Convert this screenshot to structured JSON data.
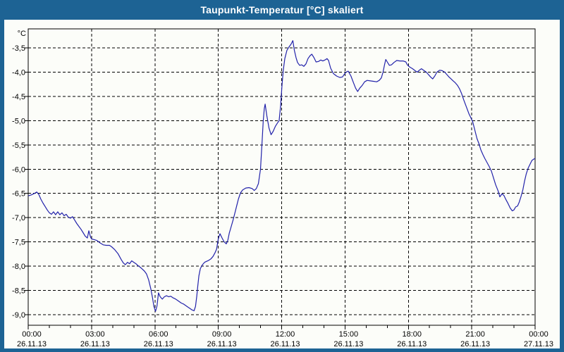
{
  "window": {
    "title": "Taupunkt-Temperatur [°C] skaliert"
  },
  "colors": {
    "frame_blue": "#1d6394",
    "title_text": "#ffffff",
    "plot_background": "#fcfdf9",
    "grid_black": "#000000",
    "line_blue": "#2222aa"
  },
  "chart_data": {
    "type": "line",
    "title": "Taupunkt-Temperatur [°C] skaliert",
    "y_unit": "°C",
    "grid": "dashed",
    "legend": "none",
    "xlim_hours": [
      0,
      24
    ],
    "ylim": [
      -9.2,
      -3.1
    ],
    "y_axis": {
      "unit_label": "°C",
      "tick_step": 0.5,
      "ticks": [
        "-3,5",
        "-4,0",
        "-4,5",
        "-5,0",
        "-5,5",
        "-6,0",
        "-6,5",
        "-7,0",
        "-7,5",
        "-8,0",
        "-8,5",
        "-9,0"
      ]
    },
    "x_axis": {
      "major_step_hours": 3,
      "minor_step_hours": 1,
      "ticks": [
        {
          "time": "00:00",
          "date": "26.11.13"
        },
        {
          "time": "03:00",
          "date": "26.11.13"
        },
        {
          "time": "06:00",
          "date": "26.11.13"
        },
        {
          "time": "09:00",
          "date": "26.11.13"
        },
        {
          "time": "12:00",
          "date": "26.11.13"
        },
        {
          "time": "15:00",
          "date": "26.11.13"
        },
        {
          "time": "18:00",
          "date": "26.11.13"
        },
        {
          "time": "21:00",
          "date": "26.11.13"
        },
        {
          "time": "00:00",
          "date": "27.11.13"
        }
      ]
    },
    "series": [
      {
        "name": "Taupunkt-Temperatur",
        "color": "#2222aa",
        "points": [
          [
            0,
            -6.55
          ],
          [
            0.15,
            -6.53
          ],
          [
            0.3,
            -6.5
          ],
          [
            0.4,
            -6.47
          ],
          [
            0.5,
            -6.52
          ],
          [
            0.6,
            -6.62
          ],
          [
            0.7,
            -6.7
          ],
          [
            0.8,
            -6.77
          ],
          [
            0.9,
            -6.84
          ],
          [
            1,
            -6.9
          ],
          [
            1.1,
            -6.93
          ],
          [
            1.2,
            -6.88
          ],
          [
            1.3,
            -6.94
          ],
          [
            1.4,
            -6.88
          ],
          [
            1.5,
            -6.94
          ],
          [
            1.6,
            -6.9
          ],
          [
            1.7,
            -6.96
          ],
          [
            1.8,
            -6.93
          ],
          [
            1.9,
            -6.99
          ],
          [
            2,
            -7.01
          ],
          [
            2.1,
            -6.98
          ],
          [
            2.2,
            -7.05
          ],
          [
            2.3,
            -7.12
          ],
          [
            2.4,
            -7.18
          ],
          [
            2.5,
            -7.24
          ],
          [
            2.6,
            -7.31
          ],
          [
            2.7,
            -7.38
          ],
          [
            2.8,
            -7.42
          ],
          [
            2.87,
            -7.27
          ],
          [
            2.95,
            -7.4
          ],
          [
            3,
            -7.44
          ],
          [
            3.1,
            -7.45
          ],
          [
            3.25,
            -7.47
          ],
          [
            3.4,
            -7.52
          ],
          [
            3.55,
            -7.56
          ],
          [
            3.7,
            -7.57
          ],
          [
            3.85,
            -7.57
          ],
          [
            3.95,
            -7.6
          ],
          [
            4.1,
            -7.66
          ],
          [
            4.25,
            -7.74
          ],
          [
            4.4,
            -7.86
          ],
          [
            4.5,
            -7.93
          ],
          [
            4.6,
            -7.97
          ],
          [
            4.7,
            -7.92
          ],
          [
            4.8,
            -7.95
          ],
          [
            4.9,
            -7.89
          ],
          [
            5,
            -7.92
          ],
          [
            5.1,
            -7.95
          ],
          [
            5.2,
            -7.99
          ],
          [
            5.3,
            -8.02
          ],
          [
            5.4,
            -8.06
          ],
          [
            5.5,
            -8.1
          ],
          [
            5.6,
            -8.16
          ],
          [
            5.7,
            -8.28
          ],
          [
            5.8,
            -8.46
          ],
          [
            5.88,
            -8.64
          ],
          [
            5.95,
            -8.83
          ],
          [
            6.03,
            -8.93
          ],
          [
            6.1,
            -8.82
          ],
          [
            6.17,
            -8.55
          ],
          [
            6.25,
            -8.63
          ],
          [
            6.35,
            -8.68
          ],
          [
            6.45,
            -8.63
          ],
          [
            6.55,
            -8.61
          ],
          [
            6.65,
            -8.63
          ],
          [
            6.75,
            -8.62
          ],
          [
            6.85,
            -8.65
          ],
          [
            6.95,
            -8.67
          ],
          [
            7.05,
            -8.7
          ],
          [
            7.15,
            -8.73
          ],
          [
            7.25,
            -8.76
          ],
          [
            7.35,
            -8.78
          ],
          [
            7.45,
            -8.81
          ],
          [
            7.55,
            -8.84
          ],
          [
            7.65,
            -8.87
          ],
          [
            7.75,
            -8.9
          ],
          [
            7.85,
            -8.92
          ],
          [
            7.92,
            -8.83
          ],
          [
            7.98,
            -8.62
          ],
          [
            8.03,
            -8.4
          ],
          [
            8.08,
            -8.2
          ],
          [
            8.15,
            -8.05
          ],
          [
            8.25,
            -7.97
          ],
          [
            8.35,
            -7.92
          ],
          [
            8.45,
            -7.9
          ],
          [
            8.55,
            -7.88
          ],
          [
            8.65,
            -7.85
          ],
          [
            8.75,
            -7.8
          ],
          [
            8.85,
            -7.72
          ],
          [
            8.92,
            -7.65
          ],
          [
            9,
            -7.44
          ],
          [
            9.08,
            -7.33
          ],
          [
            9.18,
            -7.42
          ],
          [
            9.28,
            -7.5
          ],
          [
            9.38,
            -7.54
          ],
          [
            9.45,
            -7.47
          ],
          [
            9.52,
            -7.32
          ],
          [
            9.6,
            -7.2
          ],
          [
            9.7,
            -7.05
          ],
          [
            9.8,
            -6.88
          ],
          [
            9.88,
            -6.74
          ],
          [
            9.95,
            -6.62
          ],
          [
            10.05,
            -6.49
          ],
          [
            10.15,
            -6.43
          ],
          [
            10.3,
            -6.39
          ],
          [
            10.45,
            -6.38
          ],
          [
            10.6,
            -6.4
          ],
          [
            10.7,
            -6.44
          ],
          [
            10.8,
            -6.4
          ],
          [
            10.9,
            -6.3
          ],
          [
            11,
            -6
          ],
          [
            11.08,
            -5.4
          ],
          [
            11.13,
            -5
          ],
          [
            11.18,
            -4.75
          ],
          [
            11.22,
            -4.66
          ],
          [
            11.3,
            -4.9
          ],
          [
            11.4,
            -5.15
          ],
          [
            11.5,
            -5.29
          ],
          [
            11.6,
            -5.22
          ],
          [
            11.7,
            -5.12
          ],
          [
            11.8,
            -5.05
          ],
          [
            11.88,
            -5
          ],
          [
            11.95,
            -4.7
          ],
          [
            12.02,
            -4.25
          ],
          [
            12.08,
            -3.95
          ],
          [
            12.15,
            -3.72
          ],
          [
            12.25,
            -3.55
          ],
          [
            12.35,
            -3.48
          ],
          [
            12.45,
            -3.42
          ],
          [
            12.53,
            -3.35
          ],
          [
            12.6,
            -3.55
          ],
          [
            12.68,
            -3.7
          ],
          [
            12.75,
            -3.8
          ],
          [
            12.85,
            -3.86
          ],
          [
            12.95,
            -3.85
          ],
          [
            13.05,
            -3.88
          ],
          [
            13.15,
            -3.83
          ],
          [
            13.25,
            -3.72
          ],
          [
            13.35,
            -3.66
          ],
          [
            13.43,
            -3.63
          ],
          [
            13.53,
            -3.7
          ],
          [
            13.63,
            -3.79
          ],
          [
            13.75,
            -3.78
          ],
          [
            13.85,
            -3.75
          ],
          [
            13.95,
            -3.77
          ],
          [
            14.05,
            -3.75
          ],
          [
            14.15,
            -3.72
          ],
          [
            14.22,
            -3.76
          ],
          [
            14.32,
            -3.92
          ],
          [
            14.45,
            -4.03
          ],
          [
            14.6,
            -4.08
          ],
          [
            14.75,
            -4.11
          ],
          [
            14.88,
            -4.1
          ],
          [
            14.97,
            -4.04
          ],
          [
            15.05,
            -4
          ],
          [
            15.15,
            -3.98
          ],
          [
            15.28,
            -4.08
          ],
          [
            15.4,
            -4.22
          ],
          [
            15.5,
            -4.33
          ],
          [
            15.6,
            -4.4
          ],
          [
            15.7,
            -4.33
          ],
          [
            15.82,
            -4.27
          ],
          [
            15.93,
            -4.2
          ],
          [
            16.05,
            -4.17
          ],
          [
            16.2,
            -4.18
          ],
          [
            16.35,
            -4.19
          ],
          [
            16.5,
            -4.2
          ],
          [
            16.62,
            -4.17
          ],
          [
            16.72,
            -4.12
          ],
          [
            16.8,
            -4
          ],
          [
            16.87,
            -3.85
          ],
          [
            16.93,
            -3.74
          ],
          [
            17,
            -3.79
          ],
          [
            17.1,
            -3.86
          ],
          [
            17.2,
            -3.85
          ],
          [
            17.32,
            -3.8
          ],
          [
            17.45,
            -3.76
          ],
          [
            17.6,
            -3.77
          ],
          [
            17.75,
            -3.77
          ],
          [
            17.88,
            -3.79
          ],
          [
            17.95,
            -3.85
          ],
          [
            18.05,
            -3.89
          ],
          [
            18.2,
            -3.93
          ],
          [
            18.32,
            -3.97
          ],
          [
            18.42,
            -4
          ],
          [
            18.52,
            -3.96
          ],
          [
            18.62,
            -3.93
          ],
          [
            18.72,
            -3.96
          ],
          [
            18.85,
            -4
          ],
          [
            18.95,
            -4.05
          ],
          [
            19.05,
            -4.1
          ],
          [
            19.15,
            -4.14
          ],
          [
            19.25,
            -4.08
          ],
          [
            19.35,
            -4
          ],
          [
            19.48,
            -3.96
          ],
          [
            19.6,
            -3.97
          ],
          [
            19.72,
            -4
          ],
          [
            19.82,
            -4.05
          ],
          [
            19.92,
            -4.1
          ],
          [
            20.02,
            -4.14
          ],
          [
            20.12,
            -4.18
          ],
          [
            20.22,
            -4.22
          ],
          [
            20.32,
            -4.27
          ],
          [
            20.42,
            -4.34
          ],
          [
            20.52,
            -4.44
          ],
          [
            20.62,
            -4.57
          ],
          [
            20.75,
            -4.72
          ],
          [
            20.87,
            -4.86
          ],
          [
            20.97,
            -4.95
          ],
          [
            21.05,
            -5.03
          ],
          [
            21.15,
            -5.2
          ],
          [
            21.25,
            -5.37
          ],
          [
            21.33,
            -5.46
          ],
          [
            21.43,
            -5.6
          ],
          [
            21.53,
            -5.7
          ],
          [
            21.62,
            -5.78
          ],
          [
            21.72,
            -5.86
          ],
          [
            21.82,
            -5.94
          ],
          [
            21.93,
            -6.04
          ],
          [
            22.03,
            -6.18
          ],
          [
            22.13,
            -6.32
          ],
          [
            22.25,
            -6.45
          ],
          [
            22.33,
            -6.57
          ],
          [
            22.43,
            -6.51
          ],
          [
            22.52,
            -6.54
          ],
          [
            22.62,
            -6.63
          ],
          [
            22.72,
            -6.71
          ],
          [
            22.82,
            -6.8
          ],
          [
            22.92,
            -6.86
          ],
          [
            23,
            -6.84
          ],
          [
            23.08,
            -6.78
          ],
          [
            23.17,
            -6.76
          ],
          [
            23.25,
            -6.68
          ],
          [
            23.33,
            -6.57
          ],
          [
            23.42,
            -6.43
          ],
          [
            23.5,
            -6.25
          ],
          [
            23.58,
            -6.1
          ],
          [
            23.67,
            -5.98
          ],
          [
            23.77,
            -5.89
          ],
          [
            23.85,
            -5.82
          ],
          [
            23.95,
            -5.79
          ],
          [
            24,
            -5.78
          ]
        ]
      }
    ]
  }
}
